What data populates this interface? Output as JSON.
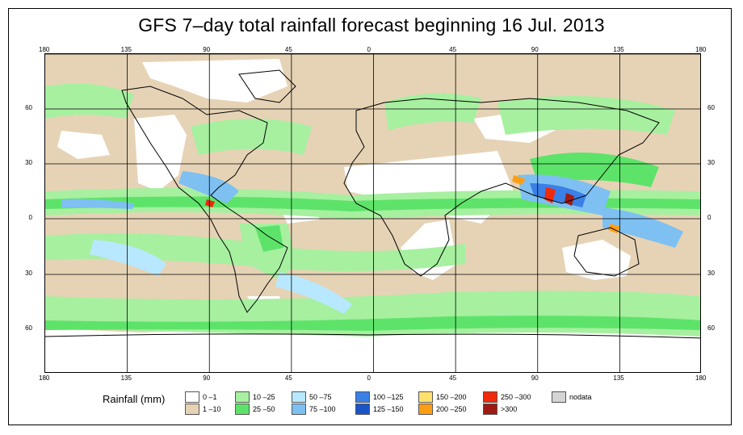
{
  "title": "GFS 7–day total rainfall forecast beginning 16 Jul. 2013",
  "axes": {
    "x_ticks": [
      "180",
      "135",
      "90",
      "45",
      "0",
      "45",
      "90",
      "135",
      "180"
    ],
    "y_ticks": [
      "60",
      "30",
      "0",
      "30",
      "60"
    ]
  },
  "legend": {
    "title": "Rainfall (mm)",
    "items": [
      {
        "label": "0 –1",
        "color": "#ffffff"
      },
      {
        "label": "1 –10",
        "color": "#e6d3b6"
      },
      {
        "label": "10 –25",
        "color": "#a6f0a0"
      },
      {
        "label": "25 –50",
        "color": "#5ee36a"
      },
      {
        "label": "50 –75",
        "color": "#b8e8ff"
      },
      {
        "label": "75 –100",
        "color": "#7ec0f2"
      },
      {
        "label": "100 –125",
        "color": "#3a80e6"
      },
      {
        "label": "125 –150",
        "color": "#1a55c8"
      },
      {
        "label": "150 –200",
        "color": "#ffe16b"
      },
      {
        "label": "200 –250",
        "color": "#ff9e14"
      },
      {
        "label": "250 –300",
        "color": "#f02a0a"
      },
      {
        "label": ">300",
        "color": "#a01a14"
      },
      {
        "label": "nodata",
        "color": "#d4d4d4"
      }
    ]
  }
}
